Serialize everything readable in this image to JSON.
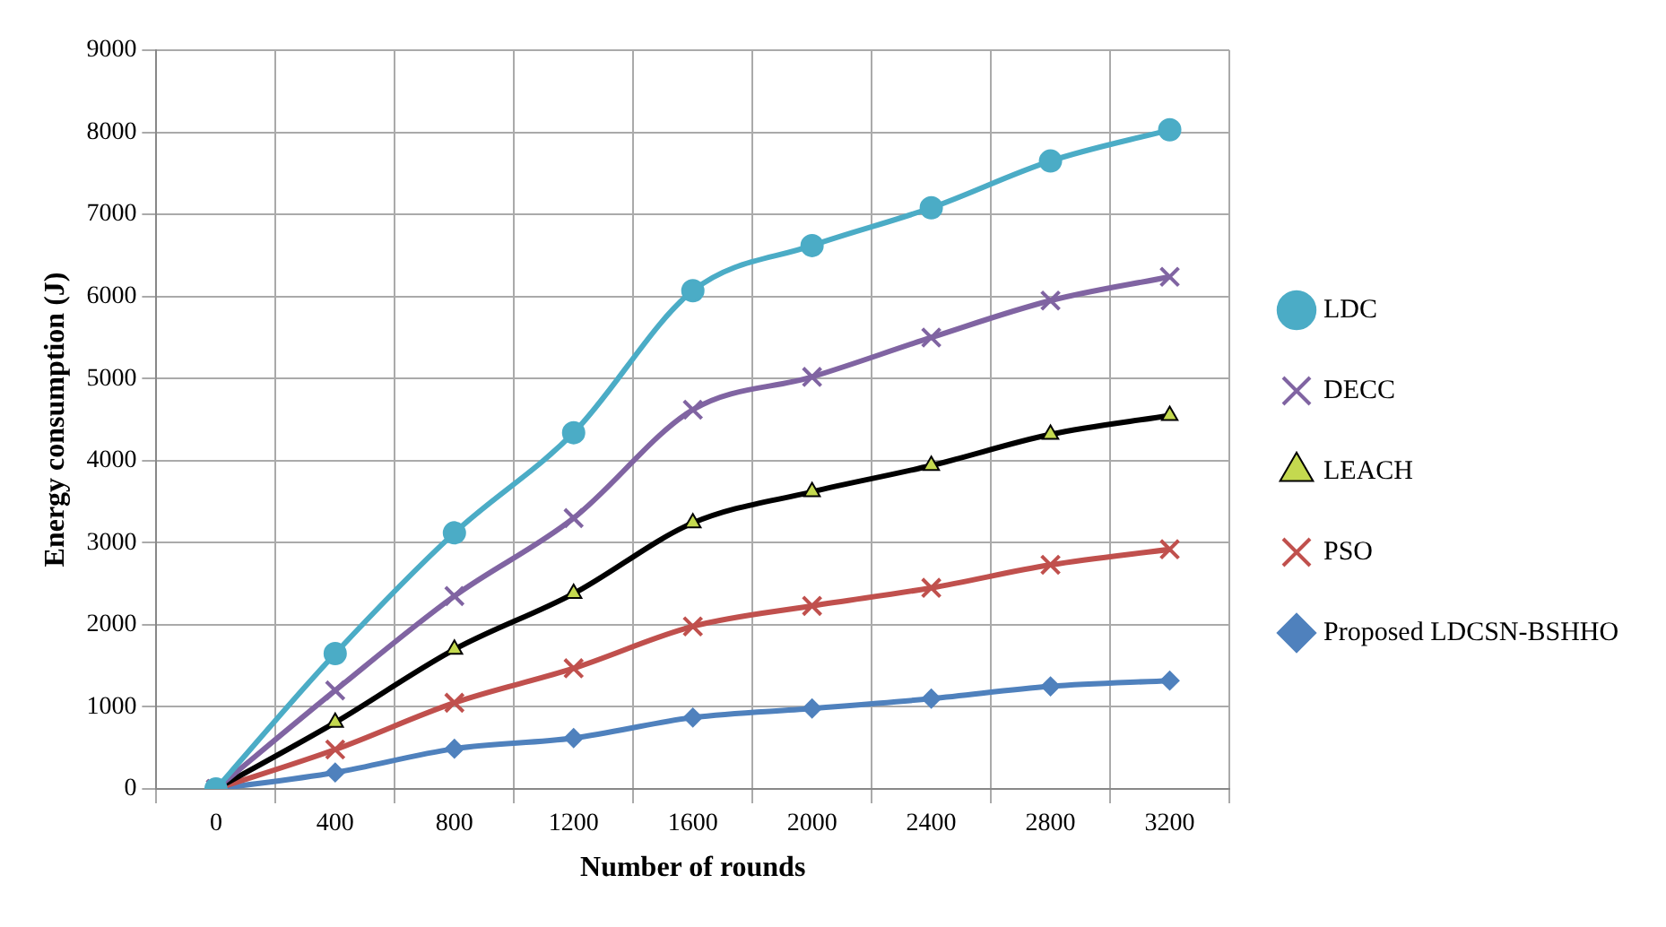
{
  "chart_data": {
    "type": "line",
    "xlabel": "Number of rounds",
    "ylabel": "Energy consumption (J)",
    "categories": [
      "0",
      "400",
      "800",
      "1200",
      "1600",
      "2000",
      "2400",
      "2800",
      "3200"
    ],
    "series": [
      {
        "name": "LDC",
        "color": "#4bacc6",
        "marker": "circle",
        "values": [
          0,
          1650,
          3120,
          4340,
          6070,
          6620,
          7080,
          7650,
          8030
        ]
      },
      {
        "name": "DECC",
        "color": "#8064a2",
        "marker": "cross",
        "values": [
          0,
          1200,
          2350,
          3300,
          4620,
          5020,
          5500,
          5950,
          6240
        ]
      },
      {
        "name": "LEACH",
        "color": "#000000",
        "marker": "triangle",
        "values": [
          0,
          810,
          1700,
          2380,
          3240,
          3620,
          3940,
          4320,
          4550
        ]
      },
      {
        "name": "PSO",
        "color": "#c0504d",
        "marker": "cross",
        "values": [
          0,
          480,
          1050,
          1470,
          1980,
          2230,
          2450,
          2730,
          2920
        ]
      },
      {
        "name": "Proposed LDCSN-BSHHO",
        "color": "#4f81bd",
        "marker": "diamond",
        "values": [
          0,
          200,
          490,
          620,
          870,
          980,
          1100,
          1250,
          1320
        ]
      }
    ],
    "ylim": [
      0,
      9000
    ],
    "yticks": [
      0,
      1000,
      2000,
      3000,
      4000,
      5000,
      6000,
      7000,
      8000,
      9000
    ],
    "grid": true,
    "legend": "right",
    "line_style": "solid"
  }
}
